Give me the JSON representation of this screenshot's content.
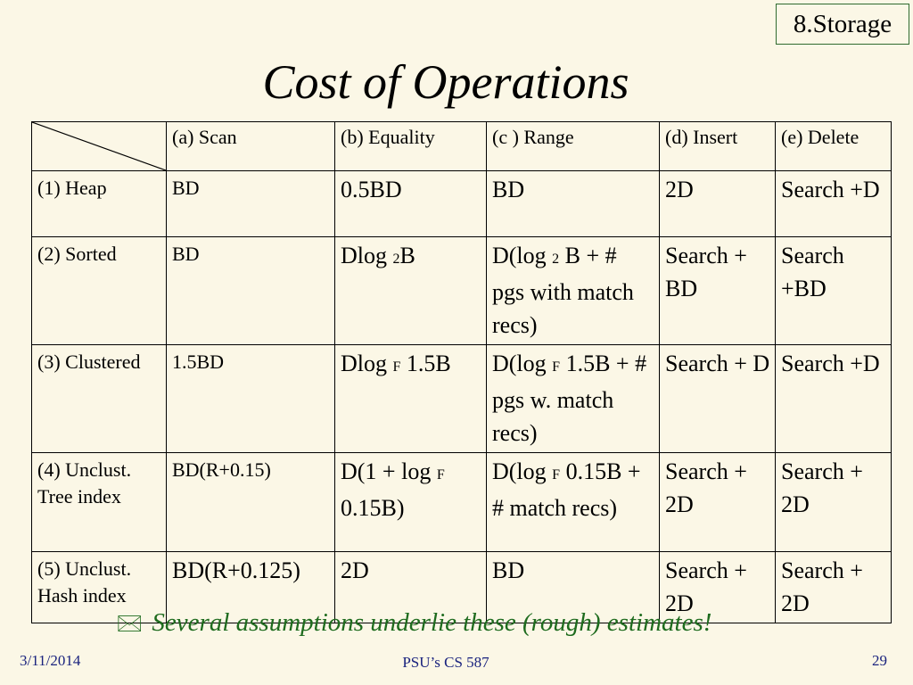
{
  "badge": "8.Storage",
  "title": "Cost of Operations",
  "table": {
    "columns": [
      "(a) Scan",
      "(b) Equality",
      "(c ) Range",
      "(d) Insert",
      "(e) Delete"
    ],
    "rows": [
      {
        "label": "(1) Heap",
        "scan": "BD",
        "equality": "0.5BD",
        "range": "BD",
        "insert": "2D",
        "delete": "Search +D"
      },
      {
        "label": "(2) Sorted",
        "scan": "BD",
        "equality": {
          "pre": "Dlog ",
          "sub": "2",
          "post": "B"
        },
        "range": {
          "pre": "D(log ",
          "sub": "2",
          "post": " B + # pgs with match recs)"
        },
        "insert": "Search + BD",
        "delete": "Search +BD"
      },
      {
        "label": "(3) Clustered",
        "scan": "1.5BD",
        "equality": {
          "pre": "Dlog ",
          "sub": "F",
          "post": " 1.5B"
        },
        "range": {
          "pre": "D(log ",
          "sub": "F",
          "post": " 1.5B + # pgs w. match recs)"
        },
        "insert": "Search + D",
        "delete": "Search +D"
      },
      {
        "label": "(4) Unclust. Tree index",
        "scan": "BD(R+0.15)",
        "equality": {
          "pre": "D(1 + log ",
          "sub": "F",
          "post": " 0.15B)"
        },
        "range": {
          "pre": "D(log ",
          "sub": "F",
          "post": " 0.15B + # match recs)"
        },
        "insert": "Search + 2D",
        "delete": "Search + 2D"
      },
      {
        "label": "(5) Unclust. Hash index",
        "scan": "BD(R+0.125)",
        "equality": "2D",
        "range": "BD",
        "insert": "Search + 2D",
        "delete": "Search + 2D"
      }
    ]
  },
  "note": {
    "icon": "envelope-icon",
    "text": "Several assumptions underlie these (rough) estimates!"
  },
  "footer": {
    "date": "3/11/2014",
    "course": "PSU’s CS 587",
    "page": "29"
  },
  "colors": {
    "background": "#fbf7e6",
    "note": "#1e6b1e",
    "footer": "#1a237e",
    "badge_border": "#2f6b2f"
  }
}
